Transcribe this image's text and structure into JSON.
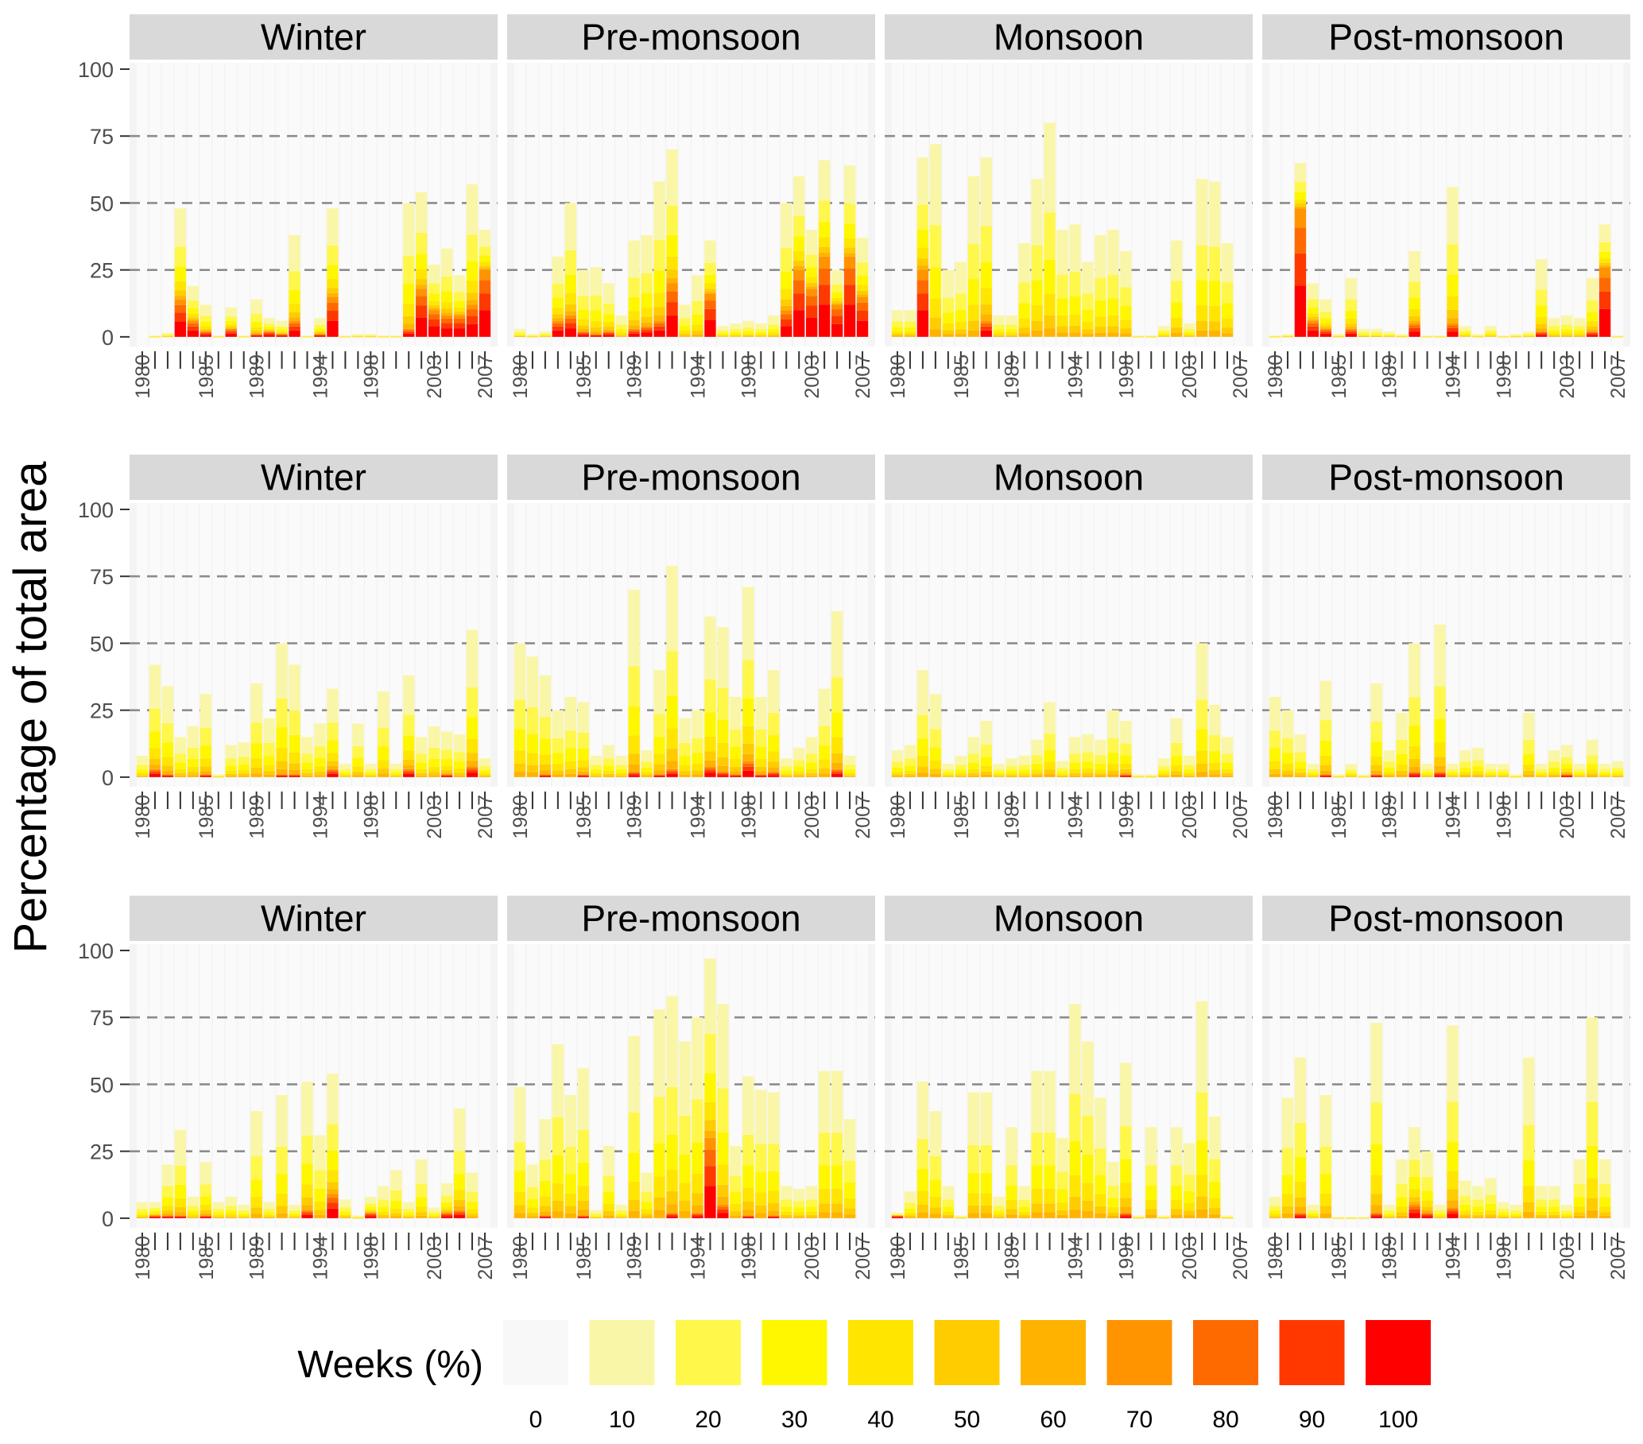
{
  "figure": {
    "ylabel": "Percentage of total area",
    "legend_title": "Weeks (%)"
  },
  "legend": {
    "labels": [
      "0",
      "10",
      "20",
      "30",
      "40",
      "50",
      "60",
      "70",
      "80",
      "90",
      "100"
    ],
    "colors": [
      "#F8F8F8",
      "#FAF6A8",
      "#FFF74A",
      "#FFF700",
      "#FFE500",
      "#FFCC00",
      "#FFB300",
      "#FF9400",
      "#FF6A00",
      "#FF3800",
      "#FF0000"
    ]
  },
  "chart_data": {
    "type": "bar",
    "stacked": true,
    "layout": "3 rows x 4 columns facet grid",
    "facets": [
      "Winter",
      "Pre-monsoon",
      "Monsoon",
      "Post-monsoon"
    ],
    "years": [
      1980,
      1981,
      1982,
      1983,
      1984,
      1985,
      1986,
      1987,
      1988,
      1989,
      1990,
      1991,
      1992,
      1993,
      1994,
      1995,
      1996,
      1997,
      1998,
      1999,
      2000,
      2001,
      2002,
      2003,
      2004,
      2005,
      2006,
      2007
    ],
    "x_tick_labels": [
      "1980",
      "1985",
      "1989",
      "1994",
      "1998",
      "2003",
      "2007"
    ],
    "y_ticks": [
      "0",
      "25",
      "50",
      "75",
      "100"
    ],
    "ylim": [
      0,
      100
    ],
    "reference_lines": [
      25,
      50,
      75
    ],
    "rows": [
      {
        "panels": [
          {
            "title": "Winter",
            "totals": [
              0,
              0.5,
              1.5,
              48,
              19,
              12,
              0.5,
              11,
              0.5,
              14,
              7,
              6,
              38,
              0.5,
              7,
              48,
              0.5,
              1,
              1,
              0.5,
              0.5,
              50,
              54,
              27,
              33,
              23,
              57,
              40
            ],
            "hot": [
              0,
              0,
              0,
              14,
              6,
              2,
              0,
              3,
              0,
              1,
              2,
              1,
              6,
              0,
              1,
              15,
              0,
              0,
              0,
              0,
              0,
              3,
              18,
              10,
              8,
              8,
              12,
              25
            ]
          },
          {
            "title": "Pre-monsoon",
            "totals": [
              3,
              1,
              2,
              30,
              50,
              25,
              26,
              20,
              8,
              36,
              38,
              58,
              70,
              12,
              23,
              36,
              4,
              5,
              6,
              5,
              8,
              50,
              60,
              40,
              66,
              25,
              64,
              37
            ],
            "hot": [
              0,
              0,
              0,
              6,
              8,
              2,
              1,
              2,
              0,
              3,
              4,
              6,
              20,
              0,
              0,
              16,
              0,
              0,
              0,
              0,
              0,
              10,
              25,
              18,
              30,
              12,
              30,
              15
            ]
          },
          {
            "title": "Monsoon",
            "totals": [
              10,
              10,
              67,
              72,
              25,
              28,
              60,
              67,
              8,
              8,
              35,
              59,
              80,
              40,
              42,
              28,
              38,
              40,
              32,
              0.5,
              0.5,
              4,
              36,
              5,
              59,
              58,
              35,
              0
            ],
            "hot": [
              0,
              0,
              25,
              0,
              0,
              0,
              0,
              6,
              0,
              0,
              0,
              0,
              0,
              0,
              0,
              0,
              0,
              0,
              0,
              0,
              0,
              0,
              0,
              0,
              0,
              0,
              0,
              0
            ]
          },
          {
            "title": "Post-monsoon",
            "totals": [
              0.5,
              1,
              65,
              20,
              14,
              1,
              22,
              3,
              3,
              2,
              1,
              32,
              0.5,
              0.5,
              56,
              4,
              1,
              4,
              0.5,
              1,
              2,
              29,
              7,
              8,
              7,
              22,
              42,
              0.5
            ],
            "hot": [
              0,
              0,
              48,
              6,
              3,
              0,
              3,
              0,
              0,
              0,
              0,
              5,
              0,
              0,
              5,
              0,
              0,
              0,
              0,
              0,
              0,
              2,
              0,
              0,
              0,
              2,
              26,
              0
            ]
          }
        ]
      },
      {
        "panels": [
          {
            "title": "Winter",
            "totals": [
              8,
              42,
              34,
              15,
              19,
              31,
              1,
              12,
              13,
              35,
              22,
              50,
              42,
              15,
              20,
              33,
              5,
              20,
              5,
              32,
              5,
              38,
              15,
              19,
              17,
              16,
              55,
              7
            ],
            "hot": [
              0,
              3,
              1,
              0,
              0,
              1,
              0,
              0,
              0,
              0,
              0,
              1,
              1,
              0,
              0,
              3,
              0,
              0,
              0,
              0,
              0,
              3,
              0,
              0,
              1,
              0,
              4,
              0
            ]
          },
          {
            "title": "Pre-monsoon",
            "totals": [
              50,
              45,
              38,
              25,
              30,
              28,
              8,
              12,
              8,
              70,
              10,
              40,
              79,
              22,
              25,
              60,
              56,
              30,
              71,
              30,
              40,
              7,
              11,
              15,
              33,
              62,
              8,
              0
            ],
            "hot": [
              0,
              0,
              1,
              0,
              0,
              1,
              0,
              0,
              0,
              2,
              0,
              1,
              3,
              0,
              0,
              4,
              2,
              1,
              6,
              1,
              2,
              0,
              0,
              0,
              0,
              3,
              0,
              0
            ]
          },
          {
            "title": "Monsoon",
            "totals": [
              10,
              12,
              40,
              31,
              5,
              8,
              15,
              21,
              5,
              7,
              8,
              14,
              28,
              6,
              15,
              16,
              14,
              25,
              21,
              1,
              1,
              7,
              22,
              8,
              50,
              27,
              15,
              0
            ],
            "hot": [
              0,
              0,
              0,
              0,
              0,
              0,
              0,
              0,
              0,
              0,
              0,
              0,
              0,
              0,
              0,
              0,
              0,
              0,
              1,
              0,
              0,
              0,
              0,
              0,
              0,
              0,
              0,
              0
            ]
          },
          {
            "title": "Post-monsoon",
            "totals": [
              30,
              25,
              16,
              5,
              36,
              1,
              5,
              1,
              35,
              10,
              24,
              50,
              5,
              57,
              5,
              10,
              11,
              5,
              5,
              1,
              24,
              5,
              10,
              12,
              5,
              14,
              5,
              6
            ],
            "hot": [
              0,
              0,
              0,
              0,
              1,
              0,
              0,
              0,
              1,
              0,
              0,
              2,
              0,
              2,
              0,
              0,
              0,
              0,
              0,
              0,
              0,
              0,
              0,
              1,
              0,
              0,
              0,
              0
            ]
          }
        ]
      },
      {
        "panels": [
          {
            "title": "Winter",
            "totals": [
              6,
              6,
              20,
              33,
              8,
              21,
              6,
              8,
              5,
              40,
              6,
              46,
              5,
              51,
              31,
              54,
              7,
              1,
              8,
              12,
              18,
              6,
              22,
              4,
              13,
              41,
              17,
              0
            ],
            "hot": [
              0,
              1,
              1,
              1,
              0,
              1,
              0,
              0,
              0,
              0,
              0,
              0,
              0,
              3,
              0,
              9,
              0,
              0,
              2,
              0,
              0,
              0,
              0,
              0,
              2,
              3,
              0,
              0
            ]
          },
          {
            "title": "Pre-monsoon",
            "totals": [
              49,
              20,
              37,
              65,
              46,
              56,
              3,
              27,
              5,
              68,
              17,
              78,
              83,
              66,
              75,
              97,
              80,
              27,
              53,
              48,
              47,
              12,
              11,
              12,
              55,
              55,
              37,
              0
            ],
            "hot": [
              0,
              0,
              1,
              0,
              0,
              1,
              0,
              0,
              0,
              0,
              0,
              0,
              2,
              0,
              2,
              30,
              5,
              0,
              1,
              0,
              1,
              0,
              0,
              0,
              0,
              0,
              0,
              0
            ]
          },
          {
            "title": "Monsoon",
            "totals": [
              2,
              10,
              51,
              40,
              12,
              1,
              47,
              47,
              8,
              34,
              12,
              55,
              55,
              30,
              80,
              66,
              45,
              21,
              58,
              1,
              34,
              1,
              34,
              28,
              81,
              38,
              1,
              0
            ],
            "hot": [
              1,
              0,
              0,
              0,
              0,
              0,
              0,
              0,
              0,
              0,
              0,
              0,
              0,
              0,
              0,
              0,
              0,
              0,
              2,
              0,
              0,
              0,
              0,
              0,
              0,
              0,
              0,
              0
            ]
          },
          {
            "title": "Post-monsoon",
            "totals": [
              8,
              45,
              60,
              5,
              46,
              0.5,
              0.5,
              0.5,
              73,
              5,
              22,
              34,
              25,
              5,
              72,
              14,
              12,
              15,
              6,
              5,
              60,
              12,
              12,
              5,
              22,
              75,
              22,
              0
            ],
            "hot": [
              0,
              0,
              2,
              0,
              0,
              0,
              0,
              0,
              2,
              0,
              0,
              5,
              2,
              0,
              4,
              0,
              0,
              0,
              0,
              0,
              0,
              0,
              0,
              0,
              0,
              0,
              0,
              0
            ]
          }
        ]
      }
    ]
  }
}
